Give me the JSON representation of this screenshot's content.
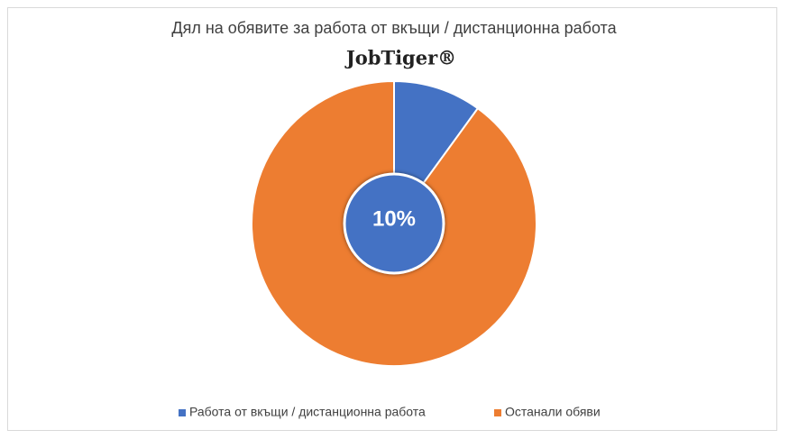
{
  "chart_data": {
    "type": "pie",
    "title": "Дял на обявите за работа от вкъщи / дистанционна работа",
    "subtitle": "JobTiger®",
    "categories": [
      "Работа от вкъщи / дистанционна работа",
      "Останали обяви"
    ],
    "values": [
      10,
      90
    ],
    "value_labels": [
      "10%",
      null
    ],
    "colors": [
      "#4472c4",
      "#ed7d31"
    ],
    "legend": "bottom"
  }
}
